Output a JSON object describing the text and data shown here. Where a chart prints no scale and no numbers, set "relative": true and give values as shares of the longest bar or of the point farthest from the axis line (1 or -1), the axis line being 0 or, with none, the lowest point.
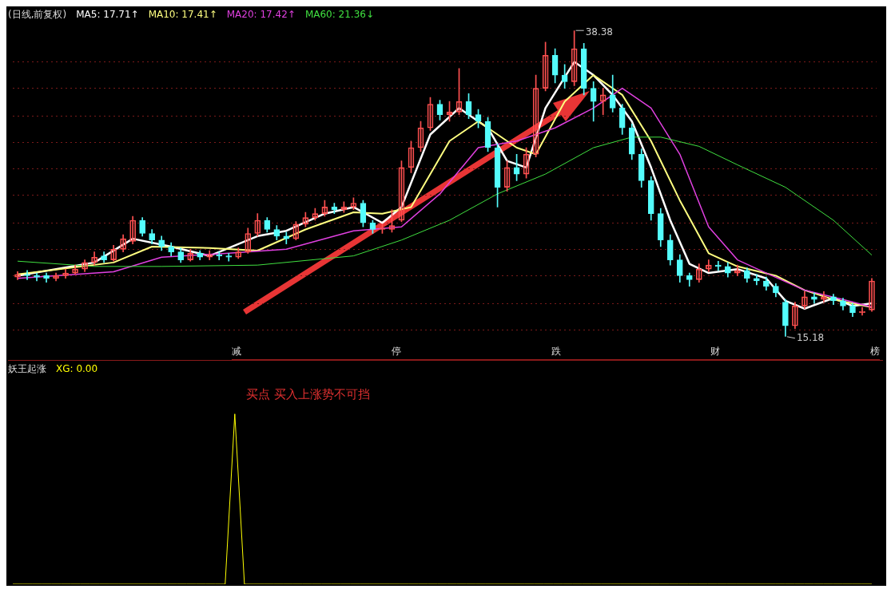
{
  "chart_data": [
    {
      "type": "candlestick",
      "title": "(日线,前复权)",
      "legend": "top left",
      "grid": "y",
      "categories": [
        null,
        null,
        null,
        null,
        null,
        null,
        null,
        null,
        null,
        null,
        null,
        null,
        null,
        null,
        null,
        null,
        null,
        null,
        null,
        null,
        null,
        null,
        null,
        null,
        null,
        null,
        null,
        null,
        null,
        null,
        null,
        null,
        null,
        null,
        null,
        null,
        null,
        null,
        null,
        null,
        null,
        null,
        null,
        null,
        null,
        null,
        null,
        null,
        null,
        null,
        null,
        null,
        null,
        null,
        null,
        null,
        null,
        null,
        null,
        null,
        null,
        null,
        null,
        null,
        null,
        null,
        null,
        null,
        null,
        null,
        null,
        null,
        null,
        null,
        null,
        null,
        null,
        null,
        null,
        null,
        null,
        null,
        null,
        null,
        null,
        null,
        null,
        null,
        null,
        null
      ],
      "ohlc": [
        [
          19.7,
          20.1,
          19.5,
          19.9
        ],
        [
          19.9,
          20.2,
          19.5,
          19.8
        ],
        [
          19.8,
          20.0,
          19.4,
          19.7
        ],
        [
          19.8,
          20.0,
          19.3,
          19.6
        ],
        [
          19.6,
          20.0,
          19.4,
          19.8
        ],
        [
          19.8,
          20.3,
          19.6,
          20.0
        ],
        [
          20.0,
          20.6,
          19.9,
          20.3
        ],
        [
          20.3,
          21.0,
          20.1,
          20.8
        ],
        [
          20.8,
          21.6,
          20.6,
          21.2
        ],
        [
          21.3,
          21.6,
          20.8,
          21.0
        ],
        [
          21.0,
          22.1,
          20.9,
          21.8
        ],
        [
          21.8,
          22.9,
          21.6,
          22.6
        ],
        [
          22.4,
          24.3,
          22.2,
          24.0
        ],
        [
          24.0,
          24.2,
          22.8,
          23.0
        ],
        [
          23.0,
          23.3,
          22.2,
          22.5
        ],
        [
          22.5,
          22.8,
          21.7,
          22.0
        ],
        [
          22.0,
          22.3,
          21.3,
          21.6
        ],
        [
          21.6,
          21.9,
          20.8,
          21.0
        ],
        [
          21.0,
          21.8,
          20.9,
          21.5
        ],
        [
          21.5,
          21.7,
          21.0,
          21.2
        ],
        [
          21.2,
          21.7,
          21.0,
          21.4
        ],
        [
          21.4,
          21.6,
          21.0,
          21.3
        ],
        [
          21.3,
          21.5,
          20.9,
          21.2
        ],
        [
          21.2,
          21.9,
          21.1,
          21.6
        ],
        [
          21.6,
          23.4,
          21.5,
          23.0
        ],
        [
          23.0,
          24.5,
          22.8,
          24.0
        ],
        [
          24.0,
          24.2,
          23.1,
          23.3
        ],
        [
          23.3,
          23.6,
          22.5,
          22.8
        ],
        [
          22.8,
          23.1,
          22.2,
          22.6
        ],
        [
          22.6,
          23.9,
          22.5,
          23.7
        ],
        [
          23.7,
          24.6,
          23.5,
          24.2
        ],
        [
          24.2,
          24.9,
          24.0,
          24.5
        ],
        [
          24.5,
          25.5,
          24.3,
          25.0
        ],
        [
          25.0,
          25.3,
          24.5,
          24.8
        ],
        [
          24.8,
          25.4,
          24.6,
          25.0
        ],
        [
          25.0,
          25.7,
          24.8,
          25.3
        ],
        [
          25.3,
          25.5,
          23.5,
          23.8
        ],
        [
          23.8,
          24.0,
          23.0,
          23.3
        ],
        [
          23.3,
          23.7,
          23.0,
          23.4
        ],
        [
          23.3,
          24.8,
          23.1,
          23.6
        ],
        [
          24.0,
          28.5,
          23.9,
          28.0
        ],
        [
          28.0,
          30.0,
          27.6,
          29.5
        ],
        [
          29.5,
          31.5,
          29.2,
          31.0
        ],
        [
          31.0,
          33.3,
          30.8,
          32.8
        ],
        [
          32.8,
          33.1,
          31.6,
          32.0
        ],
        [
          32.0,
          33.0,
          31.5,
          32.2
        ],
        [
          32.2,
          35.5,
          32.0,
          33.0
        ],
        [
          33.0,
          33.6,
          31.7,
          32.0
        ],
        [
          32.0,
          32.4,
          31.0,
          31.5
        ],
        [
          31.5,
          31.8,
          29.2,
          29.5
        ],
        [
          29.5,
          29.8,
          25.0,
          26.5
        ],
        [
          26.5,
          28.5,
          26.2,
          28.0
        ],
        [
          28.0,
          29.0,
          27.0,
          27.5
        ],
        [
          27.5,
          29.5,
          27.2,
          29.0
        ],
        [
          29.0,
          35.0,
          28.8,
          34.0
        ],
        [
          34.0,
          37.5,
          33.8,
          36.5
        ],
        [
          36.5,
          37.0,
          34.4,
          35.0
        ],
        [
          35.0,
          35.8,
          34.0,
          34.5
        ],
        [
          34.5,
          38.38,
          34.2,
          37.0
        ],
        [
          37.0,
          37.4,
          33.5,
          34.0
        ],
        [
          34.0,
          34.5,
          31.5,
          33.0
        ],
        [
          33.0,
          34.0,
          32.0,
          33.5
        ],
        [
          33.5,
          35.0,
          32.2,
          32.5
        ],
        [
          32.5,
          32.8,
          30.5,
          31.0
        ],
        [
          31.0,
          31.3,
          28.6,
          29.0
        ],
        [
          29.0,
          29.4,
          26.5,
          27.0
        ],
        [
          27.0,
          27.3,
          24.0,
          24.5
        ],
        [
          24.5,
          24.9,
          22.0,
          22.5
        ],
        [
          22.5,
          22.9,
          20.6,
          21.0
        ],
        [
          21.0,
          21.4,
          19.3,
          19.8
        ],
        [
          19.8,
          20.0,
          19.0,
          19.5
        ],
        [
          19.5,
          20.7,
          19.3,
          20.3
        ],
        [
          20.3,
          21.0,
          20.1,
          20.6
        ],
        [
          20.6,
          20.9,
          20.2,
          20.5
        ],
        [
          20.5,
          20.8,
          19.7,
          20.0
        ],
        [
          20.0,
          20.6,
          19.8,
          20.2
        ],
        [
          20.2,
          20.4,
          19.3,
          19.6
        ],
        [
          19.6,
          19.9,
          19.1,
          19.4
        ],
        [
          19.4,
          19.7,
          18.7,
          19.0
        ],
        [
          19.0,
          19.2,
          18.2,
          18.5
        ],
        [
          17.8,
          18.0,
          15.18,
          16.0
        ],
        [
          16.0,
          17.8,
          15.8,
          17.5
        ],
        [
          17.5,
          18.6,
          17.3,
          18.2
        ],
        [
          18.2,
          18.5,
          17.7,
          18.0
        ],
        [
          18.0,
          18.6,
          17.8,
          18.2
        ],
        [
          18.2,
          18.4,
          17.6,
          17.9
        ],
        [
          17.9,
          18.1,
          17.2,
          17.5
        ],
        [
          17.5,
          17.7,
          16.7,
          17.0
        ],
        [
          17.0,
          17.4,
          16.8,
          17.1
        ],
        [
          17.2,
          19.6,
          17.1,
          19.4
        ]
      ],
      "colors": [
        "#ff5050",
        "#54fcfc",
        "#54fcfc",
        "#54fcfc",
        "#ff5050",
        "#ff5050",
        "#ff5050",
        "#ff5050",
        "#ff5050",
        "#54fcfc",
        "#ff5050",
        "#ff5050",
        "#ff5050",
        "#54fcfc",
        "#54fcfc",
        "#54fcfc",
        "#54fcfc",
        "#54fcfc",
        "#ff5050",
        "#54fcfc",
        "#ff5050",
        "#54fcfc",
        "#54fcfc",
        "#ff5050",
        "#ff5050",
        "#ff5050",
        "#54fcfc",
        "#54fcfc",
        "#54fcfc",
        "#ff5050",
        "#ff5050",
        "#ff5050",
        "#ff5050",
        "#54fcfc",
        "#ff5050",
        "#ff5050",
        "#54fcfc",
        "#54fcfc",
        "#ff5050",
        "#ff5050",
        "#ff5050",
        "#ff5050",
        "#ff5050",
        "#ff5050",
        "#54fcfc",
        "#ff5050",
        "#ff5050",
        "#54fcfc",
        "#54fcfc",
        "#54fcfc",
        "#54fcfc",
        "#ff5050",
        "#54fcfc",
        "#ff5050",
        "#ff5050",
        "#ff5050",
        "#54fcfc",
        "#54fcfc",
        "#ff5050",
        "#54fcfc",
        "#54fcfc",
        "#ff5050",
        "#54fcfc",
        "#54fcfc",
        "#54fcfc",
        "#54fcfc",
        "#54fcfc",
        "#54fcfc",
        "#54fcfc",
        "#54fcfc",
        "#54fcfc",
        "#ff5050",
        "#ff5050",
        "#54fcfc",
        "#54fcfc",
        "#ff5050",
        "#54fcfc",
        "#54fcfc",
        "#54fcfc",
        "#54fcfc",
        "#54fcfc",
        "#ff5050",
        "#ff5050",
        "#54fcfc",
        "#ff5050",
        "#54fcfc",
        "#54fcfc",
        "#54fcfc",
        "#ff5050",
        "#ff5050"
      ],
      "series": [
        {
          "type": "line",
          "name": "MA5: 17.71↑",
          "color": "#ffffff",
          "values": [
            19.8,
            null,
            null,
            null,
            null,
            null,
            null,
            null,
            20.8,
            null,
            null,
            null,
            22.6,
            null,
            null,
            null,
            22.0,
            null,
            null,
            null,
            21.3,
            null,
            null,
            null,
            null,
            22.8,
            null,
            null,
            23.2,
            null,
            null,
            null,
            24.5,
            null,
            null,
            25.0,
            null,
            null,
            23.8,
            null,
            25.0,
            null,
            null,
            30.5,
            null,
            null,
            32.5,
            null,
            null,
            31.0,
            null,
            28.5,
            null,
            28.0,
            null,
            32.5,
            null,
            null,
            36.0,
            null,
            35.0,
            null,
            33.5,
            null,
            31.5,
            null,
            28.0,
            null,
            24.0,
            null,
            20.7,
            null,
            20.0,
            null,
            null,
            20.3,
            null,
            null,
            19.6,
            null,
            17.9,
            null,
            17.3,
            null,
            null,
            18.1,
            null,
            17.5,
            null,
            17.71
          ]
        },
        {
          "type": "line",
          "name": "MA10: 17.41↑",
          "color": "#ffff80",
          "values": [
            19.9,
            null,
            null,
            null,
            null,
            null,
            null,
            null,
            null,
            null,
            20.8,
            null,
            null,
            null,
            22.0,
            null,
            null,
            null,
            null,
            null,
            21.9,
            null,
            null,
            null,
            null,
            21.7,
            null,
            null,
            null,
            null,
            23.3,
            null,
            null,
            null,
            null,
            24.6,
            null,
            null,
            24.5,
            null,
            null,
            25.0,
            null,
            null,
            null,
            30.0,
            null,
            null,
            31.5,
            null,
            null,
            null,
            29.5,
            null,
            29.0,
            null,
            null,
            33.0,
            null,
            null,
            35.0,
            null,
            null,
            33.5,
            null,
            null,
            30.0,
            null,
            null,
            25.5,
            null,
            null,
            21.5,
            null,
            null,
            20.5,
            null,
            null,
            null,
            19.8,
            null,
            null,
            18.7,
            null,
            null,
            18.0,
            null,
            null,
            null,
            17.41
          ]
        },
        {
          "type": "line",
          "name": "MA20: 17.42↑",
          "color": "#e040e0",
          "values": [
            19.6,
            null,
            null,
            null,
            null,
            null,
            null,
            null,
            null,
            null,
            20.1,
            null,
            null,
            null,
            null,
            21.2,
            null,
            null,
            null,
            null,
            null,
            null,
            21.5,
            null,
            null,
            null,
            null,
            null,
            21.8,
            null,
            null,
            null,
            null,
            null,
            null,
            23.2,
            null,
            null,
            null,
            null,
            23.5,
            null,
            null,
            null,
            26.0,
            null,
            null,
            null,
            29.5,
            null,
            null,
            null,
            30.0,
            null,
            null,
            null,
            31.0,
            null,
            null,
            null,
            32.5,
            null,
            null,
            34.0,
            null,
            null,
            32.5,
            null,
            null,
            29.0,
            null,
            null,
            23.5,
            null,
            null,
            21.0,
            null,
            null,
            20.0,
            null,
            null,
            null,
            18.7,
            null,
            null,
            null,
            18.0,
            null,
            null,
            17.42
          ]
        },
        {
          "type": "line",
          "name": "MA60: 21.36↓",
          "color": "#40e040",
          "values": [
            20.9,
            null,
            null,
            null,
            null,
            null,
            null,
            null,
            20.5,
            null,
            null,
            null,
            null,
            null,
            null,
            20.5,
            null,
            null,
            null,
            null,
            null,
            null,
            null,
            null,
            null,
            20.6,
            null,
            null,
            null,
            null,
            null,
            null,
            null,
            null,
            null,
            21.3,
            null,
            null,
            null,
            null,
            22.5,
            null,
            null,
            null,
            null,
            24.0,
            null,
            null,
            null,
            null,
            26.0,
            null,
            null,
            null,
            null,
            27.5,
            null,
            null,
            null,
            null,
            29.5,
            null,
            null,
            null,
            30.3,
            null,
            null,
            30.3,
            null,
            null,
            null,
            29.6,
            null,
            null,
            null,
            28.2,
            null,
            null,
            null,
            null,
            26.5,
            null,
            null,
            null,
            null,
            24.0,
            null,
            null,
            null,
            21.36
          ]
        }
      ],
      "yticks": [
        {
          "value": 15.7,
          "label": null
        },
        {
          "value": 17.7,
          "label": null
        },
        {
          "value": 19.8,
          "label": null
        },
        {
          "value": 21.8,
          "label": null
        },
        {
          "value": 23.8,
          "label": null
        },
        {
          "value": 25.9,
          "label": null
        },
        {
          "value": 27.9,
          "label": null
        },
        {
          "value": 29.9,
          "label": null
        },
        {
          "value": 31.9,
          "label": null
        },
        {
          "value": 34.0,
          "label": null
        },
        {
          "value": 36.0,
          "label": null
        }
      ],
      "annotations": [
        "38.38",
        "15.18",
        "减",
        "停",
        "跌",
        "财",
        "榜"
      ]
    },
    {
      "type": "line",
      "title": "妖王起涨",
      "legend": "top left",
      "relative": true,
      "categories": [
        null,
        null,
        null,
        null,
        null,
        null,
        null,
        null,
        null,
        null,
        null,
        null,
        null,
        null,
        null,
        null,
        null,
        null,
        null,
        null,
        null,
        null,
        null,
        null,
        null,
        null,
        null,
        null,
        null,
        null,
        null,
        null,
        null,
        null,
        null,
        null,
        null,
        null,
        null,
        null,
        null,
        null,
        null,
        null,
        null,
        null,
        null,
        null,
        null,
        null,
        null,
        null,
        null,
        null,
        null,
        null,
        null,
        null,
        null,
        null,
        null,
        null,
        null,
        null,
        null,
        null,
        null,
        null,
        null,
        null,
        null,
        null,
        null,
        null,
        null,
        null,
        null,
        null,
        null,
        null,
        null,
        null,
        null,
        null,
        null,
        null,
        null,
        null,
        null,
        null
      ],
      "series": [
        {
          "name": "XG: 0.00",
          "color": "#ffff00",
          "values": [
            0,
            0,
            0,
            0,
            0,
            0,
            0,
            0,
            0,
            0,
            0,
            0,
            0,
            0,
            0,
            0,
            0,
            0,
            0,
            0,
            0,
            0,
            0,
            1,
            0,
            0,
            0,
            0,
            0,
            0,
            0,
            0,
            0,
            0,
            0,
            0,
            0,
            0,
            0,
            0,
            0,
            0,
            0,
            0,
            0,
            0,
            0,
            0,
            0,
            0,
            0,
            0,
            0,
            0,
            0,
            0,
            0,
            0,
            0,
            0,
            0,
            0,
            0,
            0,
            0,
            0,
            0,
            0,
            0,
            0,
            0,
            0,
            0,
            0,
            0,
            0,
            0,
            0,
            0,
            0,
            0,
            0,
            0,
            0,
            0,
            0,
            0,
            0,
            0,
            0
          ]
        }
      ],
      "annotations": [
        "买点 买入上涨势不可挡"
      ]
    }
  ]
}
